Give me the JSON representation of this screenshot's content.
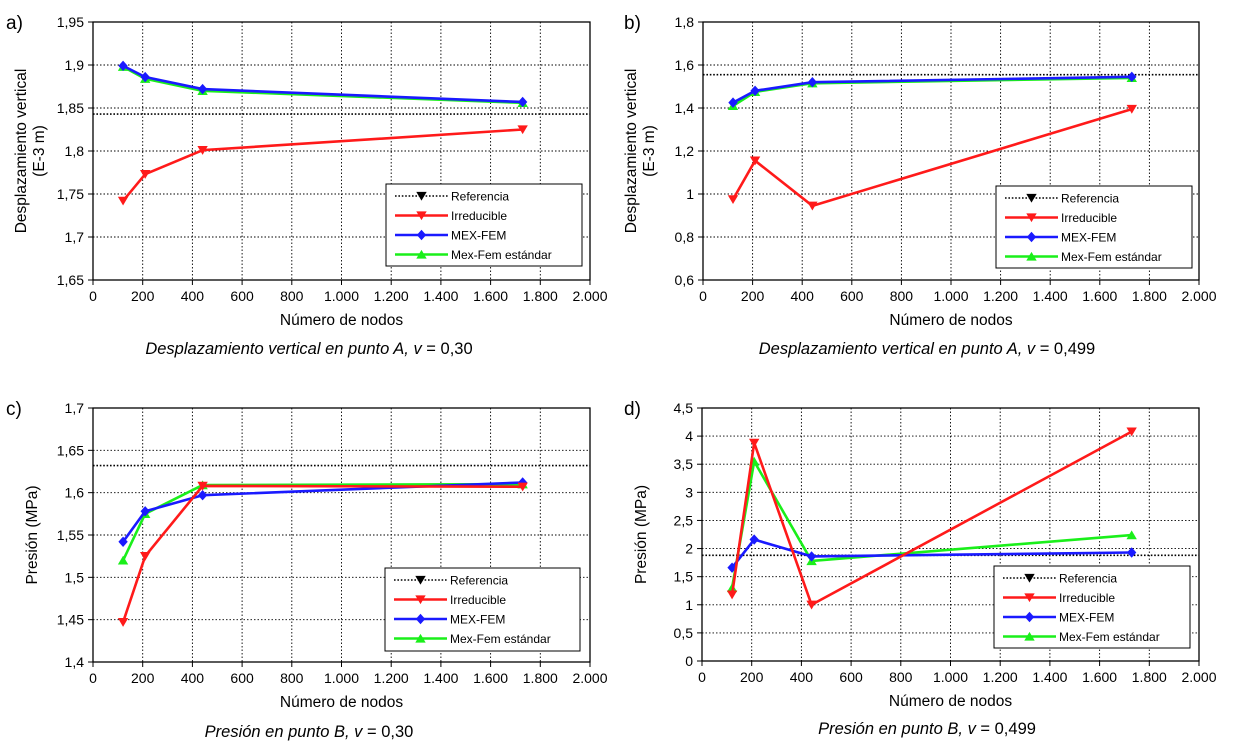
{
  "chart_data": [
    {
      "type": "line",
      "panel_label": "a)",
      "caption_prefix": "Desplazamiento vertical en punto A, ",
      "caption_var": "v",
      "caption_value": " = 0,30",
      "xlabel": "Número de nodos",
      "ylabel": [
        "Desplazamiento vertical",
        "(E-3 m)"
      ],
      "xlim": [
        0,
        2000
      ],
      "ylim": [
        1.65,
        1.95
      ],
      "xticks": [
        0,
        200,
        400,
        600,
        800,
        1000,
        1200,
        1400,
        1600,
        1800,
        2000
      ],
      "xtick_labels": [
        "0",
        "200",
        "400",
        "600",
        "800",
        "1.000",
        "1.200",
        "1.400",
        "1.600",
        "1.800",
        "2.000"
      ],
      "yticks": [
        1.65,
        1.7,
        1.75,
        1.8,
        1.85,
        1.9,
        1.95
      ],
      "ytick_labels": [
        "1,65",
        "1,7",
        "1,75",
        "1,8",
        "1,85",
        "1,9",
        "1,95"
      ],
      "grid": true,
      "legend_position": "bottom-right",
      "reference": 1.843,
      "x": [
        121,
        210,
        441,
        1729
      ],
      "series": [
        {
          "name": "Irreducible",
          "values": [
            1.742,
            1.773,
            1.801,
            1.825
          ]
        },
        {
          "name": "MEX-FEM",
          "values": [
            1.899,
            1.886,
            1.872,
            1.857
          ]
        },
        {
          "name": "Mex-Fem estándar",
          "values": [
            1.898,
            1.884,
            1.87,
            1.856
          ]
        }
      ]
    },
    {
      "type": "line",
      "panel_label": "b)",
      "caption_prefix": "Desplazamiento vertical en punto A, ",
      "caption_var": "v",
      "caption_value": " = 0,499",
      "xlabel": "Número de nodos",
      "ylabel": [
        "Desplazamiento vertical",
        "(E-3 m)"
      ],
      "xlim": [
        0,
        2000
      ],
      "ylim": [
        0.6,
        1.8
      ],
      "xticks": [
        0,
        200,
        400,
        600,
        800,
        1000,
        1200,
        1400,
        1600,
        1800,
        2000
      ],
      "xtick_labels": [
        "0",
        "200",
        "400",
        "600",
        "800",
        "1.000",
        "1.200",
        "1.400",
        "1.600",
        "1.800",
        "2.000"
      ],
      "yticks": [
        0.6,
        0.8,
        1.0,
        1.2,
        1.4,
        1.6,
        1.8
      ],
      "ytick_labels": [
        "0,6",
        "0,8",
        "1",
        "1,2",
        "1,4",
        "1,6",
        "1,8"
      ],
      "grid": true,
      "legend_position": "bottom-right",
      "reference": 1.555,
      "x": [
        121,
        210,
        441,
        1729
      ],
      "series": [
        {
          "name": "Irreducible",
          "values": [
            0.975,
            1.155,
            0.945,
            1.395
          ]
        },
        {
          "name": "MEX-FEM",
          "values": [
            1.425,
            1.48,
            1.52,
            1.545
          ]
        },
        {
          "name": "Mex-Fem estándar",
          "values": [
            1.41,
            1.475,
            1.515,
            1.54
          ]
        }
      ]
    },
    {
      "type": "line",
      "panel_label": "c)",
      "caption_prefix": "Presión en punto B, ",
      "caption_var": "v",
      "caption_value": " = 0,30",
      "xlabel": "Número de nodos",
      "ylabel": [
        "Presión (MPa)"
      ],
      "xlim": [
        0,
        2000
      ],
      "ylim": [
        1.4,
        1.7
      ],
      "xticks": [
        0,
        200,
        400,
        600,
        800,
        1000,
        1200,
        1400,
        1600,
        1800,
        2000
      ],
      "xtick_labels": [
        "0",
        "200",
        "400",
        "600",
        "800",
        "1.000",
        "1.200",
        "1.400",
        "1.600",
        "1.800",
        "2.000"
      ],
      "yticks": [
        1.4,
        1.45,
        1.5,
        1.55,
        1.6,
        1.65,
        1.7
      ],
      "ytick_labels": [
        "1,4",
        "1,45",
        "1,5",
        "1,55",
        "1,6",
        "1,65",
        "1,7"
      ],
      "grid": true,
      "legend_position": "bottom-right",
      "reference": 1.632,
      "x": [
        121,
        210,
        441,
        1729
      ],
      "series": [
        {
          "name": "Irreducible",
          "values": [
            1.447,
            1.525,
            1.608,
            1.607
          ]
        },
        {
          "name": "MEX-FEM",
          "values": [
            1.542,
            1.578,
            1.597,
            1.612
          ]
        },
        {
          "name": "Mex-Fem estándar",
          "values": [
            1.52,
            1.575,
            1.609,
            1.61
          ]
        }
      ]
    },
    {
      "type": "line",
      "panel_label": "d)",
      "caption_prefix": "Presión en punto B, ",
      "caption_var": "v",
      "caption_value": " = 0,499",
      "xlabel": "Número de nodos",
      "ylabel": [
        "Presión (MPa)"
      ],
      "xlim": [
        0,
        2000
      ],
      "ylim": [
        0,
        4.5
      ],
      "xticks": [
        0,
        200,
        400,
        600,
        800,
        1000,
        1200,
        1400,
        1600,
        1800,
        2000
      ],
      "xtick_labels": [
        "0",
        "200",
        "400",
        "600",
        "800",
        "1.000",
        "1.200",
        "1.400",
        "1.600",
        "1.800",
        "2.000"
      ],
      "yticks": [
        0,
        0.5,
        1,
        1.5,
        2,
        2.5,
        3,
        3.5,
        4,
        4.5
      ],
      "ytick_labels": [
        "0",
        "0,5",
        "1",
        "1,5",
        "2",
        "2,5",
        "3",
        "3,5",
        "4",
        "4,5"
      ],
      "grid": true,
      "legend_position": "bottom-right",
      "reference": 1.88,
      "x": [
        121,
        210,
        441,
        1729
      ],
      "series": [
        {
          "name": "Irreducible",
          "values": [
            1.18,
            3.88,
            1.0,
            4.08
          ]
        },
        {
          "name": "MEX-FEM",
          "values": [
            1.66,
            2.16,
            1.86,
            1.93
          ]
        },
        {
          "name": "Mex-Fem estándar",
          "values": [
            1.3,
            3.55,
            1.78,
            2.24
          ]
        }
      ]
    }
  ],
  "legend": {
    "reference_label": "Referencia",
    "items": [
      "Irreducible",
      "MEX-FEM",
      "Mex-Fem estándar"
    ]
  },
  "colors": {
    "reference": "#000000",
    "irreducible": "#ff1a1a",
    "mexfem": "#1a1aff",
    "mexfem_std": "#1aef1a"
  },
  "markers": {
    "reference": "triangle-down",
    "irreducible": "triangle-down",
    "mexfem": "diamond",
    "mexfem_std": "triangle-up"
  }
}
